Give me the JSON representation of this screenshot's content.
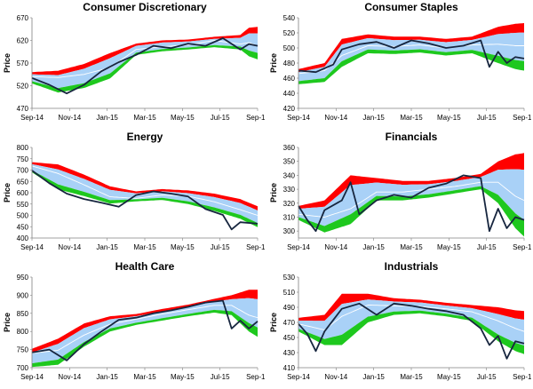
{
  "colors": {
    "upper": "#ff0000",
    "lower": "#1ec81e",
    "middle": "#a9d1f7",
    "median": "#ffffff",
    "price": "#17263f",
    "axis": "#808080"
  },
  "chart_data": [
    {
      "type": "area",
      "title": "Consumer Discretionary",
      "ylabel": "Price",
      "ylim": [
        470,
        670
      ],
      "yticks": [
        "470",
        "520",
        "570",
        "620",
        "670"
      ],
      "xlabels": [
        "Sep-14",
        "Nov-14",
        "Jan-15",
        "Mar-15",
        "May-15",
        "Jul-15",
        "Sep-15"
      ],
      "series": [
        {
          "name": "",
          "x": [
            0,
            4,
            8,
            12,
            16,
            20,
            24,
            28,
            32,
            36,
            40,
            44,
            48,
            50,
            52
          ],
          "values": [
            537,
            522,
            503,
            522,
            552,
            572,
            588,
            608,
            603,
            613,
            608,
            625,
            600,
            612,
            608
          ]
        },
        {
          "x": [
            0,
            6,
            12,
            18,
            24,
            30,
            36,
            42,
            48,
            50,
            52
          ],
          "values": [
            550,
            553,
            568,
            592,
            613,
            620,
            622,
            628,
            632,
            648,
            650
          ]
        },
        {
          "x": [
            0,
            6,
            12,
            18,
            24,
            30,
            36,
            42,
            48,
            50,
            52
          ],
          "values": [
            540,
            538,
            545,
            560,
            600,
            606,
            610,
            620,
            612,
            615,
            608
          ]
        },
        {
          "x": [
            0,
            6,
            12,
            18,
            24,
            30,
            36,
            42,
            48,
            50,
            52
          ],
          "values": [
            525,
            505,
            515,
            536,
            588,
            596,
            600,
            605,
            600,
            585,
            578
          ]
        }
      ]
    },
    {
      "type": "area",
      "title": "Consumer Staples",
      "ylabel": "Price",
      "ylim": [
        420,
        540
      ],
      "yticks": [
        "420",
        "440",
        "460",
        "480",
        "500",
        "520",
        "540"
      ],
      "xlabels": [
        "Sep-14",
        "Nov-14",
        "Jan-15",
        "Mar-15",
        "May-15",
        "Jul-15",
        "Sep-15"
      ],
      "series": [
        {
          "name": "",
          "x": [
            0,
            4,
            8,
            10,
            14,
            18,
            22,
            26,
            30,
            34,
            38,
            42,
            44,
            46,
            48,
            50,
            52
          ],
          "values": [
            470,
            468,
            478,
            498,
            505,
            508,
            500,
            510,
            506,
            500,
            503,
            510,
            475,
            495,
            480,
            488,
            486
          ]
        },
        {
          "x": [
            0,
            6,
            10,
            16,
            22,
            28,
            34,
            40,
            46,
            50,
            52
          ],
          "values": [
            472,
            480,
            512,
            518,
            515,
            515,
            512,
            515,
            528,
            532,
            533
          ]
        },
        {
          "x": [
            0,
            6,
            10,
            16,
            22,
            28,
            34,
            40,
            46,
            50,
            52
          ],
          "values": [
            466,
            470,
            490,
            503,
            502,
            504,
            500,
            504,
            505,
            503,
            503
          ]
        },
        {
          "x": [
            0,
            6,
            10,
            16,
            22,
            28,
            34,
            40,
            46,
            50,
            52
          ],
          "values": [
            452,
            455,
            475,
            493,
            492,
            494,
            490,
            493,
            480,
            472,
            470
          ]
        }
      ]
    },
    {
      "type": "area",
      "title": "Energy",
      "ylabel": "Price",
      "ylim": [
        400,
        800
      ],
      "yticks": [
        "400",
        "450",
        "500",
        "550",
        "600",
        "650",
        "700",
        "750",
        "800"
      ],
      "xlabels": [
        "Sep-14",
        "Nov-14",
        "Jan-15",
        "Mar-15",
        "May-15",
        "Jul-15",
        "Sep-15"
      ],
      "series": [
        {
          "name": "",
          "x": [
            0,
            4,
            8,
            12,
            16,
            20,
            24,
            28,
            32,
            36,
            40,
            44,
            46,
            48,
            52
          ],
          "values": [
            698,
            642,
            596,
            572,
            556,
            538,
            590,
            606,
            596,
            583,
            528,
            502,
            438,
            470,
            463
          ]
        },
        {
          "x": [
            0,
            6,
            12,
            18,
            24,
            30,
            36,
            42,
            48,
            52
          ],
          "values": [
            735,
            725,
            680,
            628,
            606,
            616,
            610,
            596,
            572,
            540
          ]
        },
        {
          "x": [
            0,
            6,
            12,
            18,
            24,
            30,
            36,
            42,
            48,
            52
          ],
          "values": [
            718,
            685,
            635,
            582,
            575,
            590,
            585,
            560,
            525,
            500
          ]
        },
        {
          "x": [
            0,
            6,
            12,
            18,
            24,
            30,
            36,
            42,
            48,
            52
          ],
          "values": [
            690,
            615,
            585,
            552,
            562,
            568,
            550,
            520,
            485,
            448
          ]
        }
      ]
    },
    {
      "type": "area",
      "title": "Financials",
      "ylabel": "Price",
      "ylim": [
        295,
        360
      ],
      "yticks": [
        "300",
        "310",
        "320",
        "330",
        "340",
        "350",
        "360"
      ],
      "xlabels": [
        "Sep-14",
        "Nov-14",
        "Jan-15",
        "Mar-15",
        "May-15",
        "Jul-15",
        "Sep-15"
      ],
      "series": [
        {
          "name": "",
          "x": [
            0,
            2,
            4,
            6,
            10,
            12,
            14,
            18,
            22,
            26,
            30,
            34,
            38,
            42,
            44,
            46,
            48,
            50,
            52
          ],
          "values": [
            318,
            308,
            300,
            315,
            322,
            335,
            312,
            322,
            326,
            324,
            331,
            334,
            340,
            338,
            300,
            316,
            302,
            310,
            308
          ]
        },
        {
          "x": [
            0,
            6,
            12,
            18,
            24,
            30,
            36,
            42,
            46,
            50,
            52
          ],
          "values": [
            318,
            322,
            340,
            338,
            336,
            336,
            338,
            341,
            350,
            355,
            356
          ]
        },
        {
          "x": [
            0,
            6,
            12,
            18,
            24,
            30,
            36,
            42,
            46,
            50,
            52
          ],
          "values": [
            312,
            310,
            316,
            328,
            328,
            330,
            332,
            335,
            335,
            325,
            322
          ]
        },
        {
          "x": [
            0,
            6,
            12,
            18,
            24,
            30,
            36,
            42,
            46,
            50,
            52
          ],
          "values": [
            308,
            299,
            305,
            322,
            322,
            324,
            327,
            330,
            320,
            302,
            296
          ]
        }
      ]
    },
    {
      "type": "area",
      "title": "Health Care",
      "ylabel": "Price",
      "ylim": [
        700,
        950
      ],
      "yticks": [
        "700",
        "750",
        "800",
        "850",
        "900",
        "950"
      ],
      "xlabels": [
        "Sep-14",
        "Nov-14",
        "Jan-15",
        "Mar-15",
        "May-15",
        "Jul-15",
        "Sep-15"
      ],
      "series": [
        {
          "name": "",
          "x": [
            0,
            4,
            8,
            12,
            16,
            20,
            24,
            28,
            32,
            36,
            40,
            44,
            46,
            48,
            50,
            52
          ],
          "values": [
            742,
            750,
            720,
            765,
            800,
            832,
            838,
            850,
            858,
            868,
            880,
            885,
            808,
            830,
            808,
            828
          ]
        },
        {
          "x": [
            0,
            6,
            12,
            18,
            24,
            30,
            36,
            42,
            46,
            50,
            52
          ],
          "values": [
            752,
            780,
            822,
            842,
            848,
            862,
            874,
            890,
            900,
            915,
            915
          ]
        },
        {
          "x": [
            0,
            6,
            12,
            18,
            24,
            30,
            36,
            42,
            46,
            50,
            52
          ],
          "values": [
            740,
            748,
            790,
            820,
            834,
            848,
            860,
            872,
            872,
            845,
            838
          ]
        },
        {
          "x": [
            0,
            6,
            12,
            18,
            24,
            30,
            36,
            42,
            46,
            50,
            52
          ],
          "values": [
            702,
            708,
            758,
            800,
            818,
            830,
            842,
            852,
            845,
            800,
            785
          ]
        }
      ]
    },
    {
      "type": "area",
      "title": "Industrials",
      "ylabel": "Price",
      "ylim": [
        410,
        530
      ],
      "yticks": [
        "410",
        "430",
        "450",
        "470",
        "490",
        "510",
        "530"
      ],
      "xlabels": [
        "Sep-14",
        "Nov-14",
        "Jan-15",
        "Mar-15",
        "May-15",
        "Jul-15",
        "Sep-15"
      ],
      "series": [
        {
          "name": "",
          "x": [
            0,
            2,
            4,
            6,
            10,
            14,
            18,
            22,
            26,
            30,
            34,
            38,
            42,
            44,
            46,
            48,
            50,
            52
          ],
          "values": [
            468,
            455,
            432,
            458,
            488,
            495,
            480,
            495,
            492,
            488,
            485,
            480,
            462,
            440,
            452,
            422,
            445,
            442
          ]
        },
        {
          "x": [
            0,
            6,
            10,
            16,
            22,
            28,
            34,
            40,
            46,
            50,
            52
          ],
          "values": [
            476,
            480,
            508,
            508,
            502,
            500,
            496,
            493,
            490,
            486,
            485
          ]
        },
        {
          "x": [
            0,
            6,
            10,
            16,
            22,
            28,
            34,
            40,
            46,
            50,
            52
          ],
          "values": [
            468,
            460,
            478,
            493,
            492,
            491,
            488,
            484,
            472,
            462,
            458
          ]
        },
        {
          "x": [
            0,
            6,
            10,
            16,
            22,
            28,
            34,
            40,
            46,
            50,
            52
          ],
          "values": [
            458,
            440,
            440,
            470,
            480,
            482,
            478,
            472,
            445,
            432,
            428
          ]
        }
      ]
    }
  ]
}
